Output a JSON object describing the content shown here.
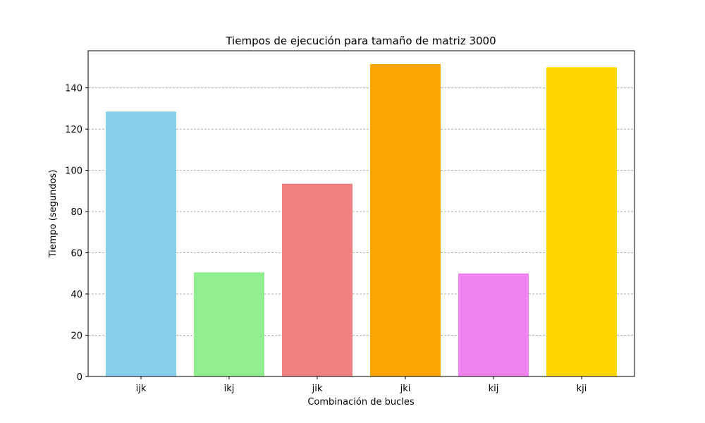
{
  "chart_data": {
    "type": "bar",
    "title": "Tiempos de ejecución para tamaño de matriz 3000",
    "xlabel": "Combinación de bucles",
    "ylabel": "Tiempo (segundos)",
    "categories": [
      "ijk",
      "ikj",
      "jik",
      "jki",
      "kij",
      "kji"
    ],
    "values": [
      128.5,
      50.5,
      93.5,
      151.5,
      50.0,
      150.0
    ],
    "colors": [
      "#87ceeb",
      "#90ee90",
      "#f08080",
      "#ffa500",
      "#ee82ee",
      "#ffd700"
    ],
    "ylim": [
      0,
      158
    ],
    "yticks": [
      0,
      20,
      40,
      60,
      80,
      100,
      120,
      140
    ],
    "grid": "y-dashed",
    "grid_color": "#b0b0b0"
  }
}
